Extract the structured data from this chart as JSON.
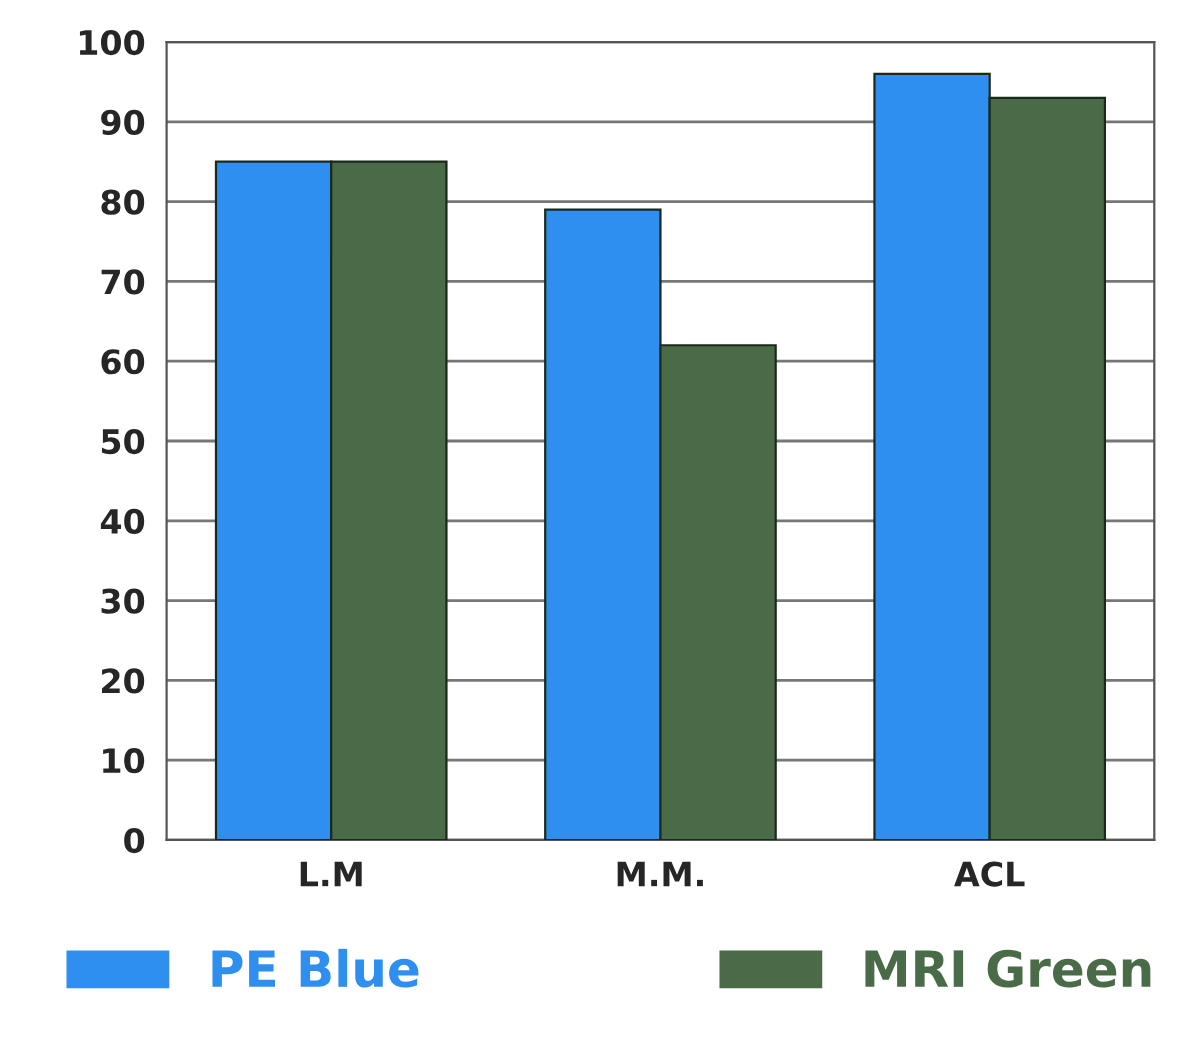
{
  "chart_data": {
    "type": "bar",
    "categories": [
      "L.M",
      "M.M.",
      "ACL"
    ],
    "series": [
      {
        "name": "PE Blue",
        "color": "#2e8ff0",
        "values": [
          85,
          79,
          96
        ]
      },
      {
        "name": "MRI Green",
        "color": "#4a6b48",
        "values": [
          85,
          62,
          93
        ]
      }
    ],
    "ylim": [
      0,
      100
    ],
    "yticks": [
      0,
      10,
      20,
      30,
      40,
      50,
      60,
      70,
      80,
      90,
      100
    ],
    "grid": "y",
    "legend": "bottom"
  }
}
